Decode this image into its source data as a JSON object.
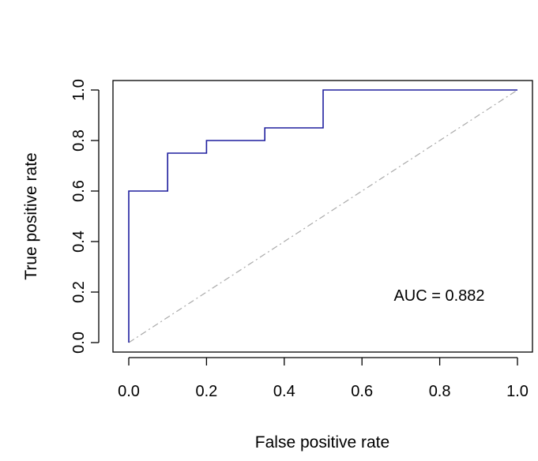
{
  "chart_data": {
    "type": "line",
    "xlabel": "False positive rate",
    "ylabel": "True positive rate",
    "xlim": [
      0.0,
      1.0
    ],
    "ylim": [
      0.0,
      1.0
    ],
    "xticks": [
      "0.0",
      "0.2",
      "0.4",
      "0.6",
      "0.8",
      "1.0"
    ],
    "yticks": [
      "0.0",
      "0.2",
      "0.4",
      "0.6",
      "0.8",
      "1.0"
    ],
    "grid": false,
    "annotation": "AUC = 0.882",
    "series": [
      {
        "color": "#1f1f9e",
        "style": "step",
        "x": [
          0.0,
          0.0,
          0.1,
          0.1,
          0.2,
          0.2,
          0.35,
          0.35,
          0.5,
          0.5,
          1.0
        ],
        "y": [
          0.0,
          0.6,
          0.6,
          0.75,
          0.75,
          0.8,
          0.8,
          0.85,
          0.85,
          1.0,
          1.0
        ]
      }
    ],
    "reference_line": {
      "color": "#aaaaaa",
      "style": "dash-dot",
      "x": [
        0.0,
        1.0
      ],
      "y": [
        0.0,
        1.0
      ]
    }
  }
}
